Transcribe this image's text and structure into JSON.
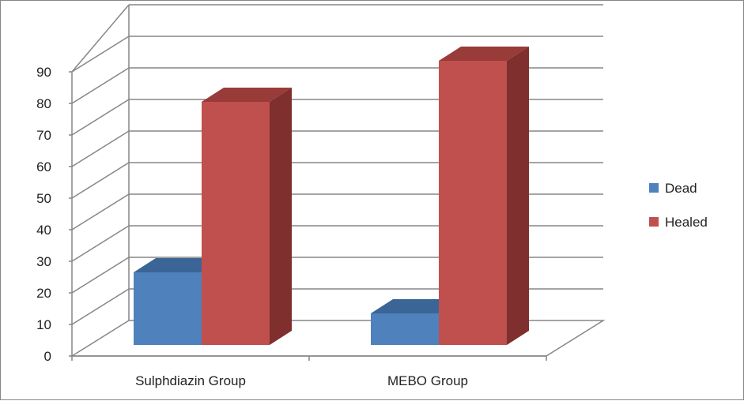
{
  "chart_data": {
    "type": "bar",
    "categories": [
      "Sulphdiazin Group",
      "MEBO Group"
    ],
    "series": [
      {
        "name": "Dead",
        "values": [
          23,
          10
        ]
      },
      {
        "name": "Healed",
        "values": [
          77,
          90
        ]
      }
    ],
    "ylim": [
      0,
      90
    ],
    "yticks": [
      "0",
      "10",
      "20",
      "30",
      "40",
      "50",
      "60",
      "70",
      "80",
      "90"
    ],
    "grid": true,
    "legend_position": "right",
    "colors": {
      "Dead": {
        "front": "#4f81bd",
        "top": "#3b6596",
        "side": "#3a6390"
      },
      "Healed": {
        "front": "#c0504d",
        "top": "#983b39",
        "side": "#7f2f2d"
      }
    }
  }
}
